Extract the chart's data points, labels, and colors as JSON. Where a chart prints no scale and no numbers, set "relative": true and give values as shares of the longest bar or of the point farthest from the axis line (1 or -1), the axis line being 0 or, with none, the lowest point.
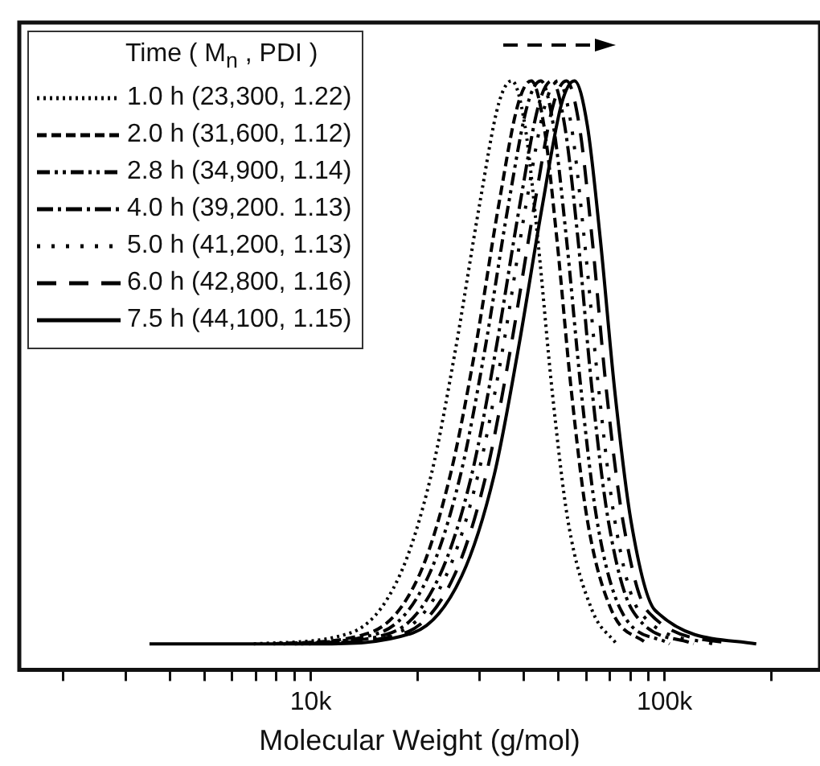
{
  "chart_data": {
    "type": "line",
    "xlabel": "Molecular Weight (g/mol)",
    "legend_title": "Time ( M$_{n}$ ,   PDI )",
    "relative": true,
    "log": "x",
    "grid": false,
    "legend": "top left",
    "marker": "none",
    "tick_labels": "x",
    "xlim": [
      1500,
      275000
    ],
    "xticks": [
      {
        "value": 2000,
        "label": null
      },
      {
        "value": 3000,
        "label": null
      },
      {
        "value": 4000,
        "label": null
      },
      {
        "value": 5000,
        "label": null
      },
      {
        "value": 6000,
        "label": null
      },
      {
        "value": 7000,
        "label": null
      },
      {
        "value": 8000,
        "label": null
      },
      {
        "value": 9000,
        "label": null
      },
      {
        "value": 10000,
        "label": "10k"
      },
      {
        "value": 20000,
        "label": null
      },
      {
        "value": 30000,
        "label": null
      },
      {
        "value": 40000,
        "label": null
      },
      {
        "value": 50000,
        "label": null
      },
      {
        "value": 60000,
        "label": null
      },
      {
        "value": 70000,
        "label": null
      },
      {
        "value": 80000,
        "label": null
      },
      {
        "value": 90000,
        "label": null
      },
      {
        "value": 100000,
        "label": "100k"
      },
      {
        "value": 200000,
        "label": null
      }
    ],
    "series": [
      {
        "name": "1.0 h (23,300, 1.22)",
        "color": "#000000",
        "line_style": "dotted",
        "x": [
          6900,
          13000,
          17800,
          21900,
          25600,
          30000,
          34000,
          37000,
          40300,
          43800,
          48100,
          53300,
          62400,
          73100
        ],
        "values": [
          0.044,
          0.063,
          0.159,
          0.331,
          0.541,
          0.79,
          0.962,
          1,
          0.924,
          0.732,
          0.474,
          0.254,
          0.101,
          0.044
        ]
      },
      {
        "name": "2.0 h (31,600, 1.12)",
        "color": "#000000",
        "line_style": "dashed",
        "x": [
          7850,
          14700,
          20200,
          24800,
          29100,
          34000,
          38600,
          42000,
          45600,
          49600,
          54500,
          60500,
          70800,
          89100
        ],
        "values": [
          0.044,
          0.063,
          0.159,
          0.331,
          0.541,
          0.79,
          0.962,
          1,
          0.924,
          0.732,
          0.474,
          0.254,
          0.101,
          0.044
        ]
      },
      {
        "name": "2.8 h (34,900, 1.14)",
        "color": "#000000",
        "line_style": "dashdotdot",
        "x": [
          8370,
          15700,
          21500,
          26500,
          31000,
          36200,
          41100,
          44700,
          48500,
          52800,
          58100,
          64400,
          75300,
          103300
        ],
        "values": [
          0.044,
          0.063,
          0.159,
          0.331,
          0.541,
          0.79,
          0.962,
          1,
          0.924,
          0.732,
          0.474,
          0.254,
          0.101,
          0.044
        ]
      },
      {
        "name": "4.0 h (39,200. 1.13)",
        "color": "#000000",
        "line_style": "dashdot",
        "x": [
          9010,
          16900,
          23100,
          28500,
          33300,
          39000,
          44200,
          48100,
          52200,
          56900,
          62400,
          69300,
          81100,
          120800
        ],
        "values": [
          0.044,
          0.063,
          0.159,
          0.331,
          0.541,
          0.79,
          0.962,
          1,
          0.924,
          0.732,
          0.474,
          0.254,
          0.101,
          0.044
        ]
      },
      {
        "name": "5.0 h (41,200, 1.13)",
        "color": "#000000",
        "line_style": "loosely_dotted",
        "x": [
          9400,
          17600,
          24100,
          29700,
          34800,
          40600,
          46100,
          50100,
          54500,
          59300,
          65200,
          72300,
          84500,
          136800
        ],
        "values": [
          0.044,
          0.063,
          0.159,
          0.331,
          0.541,
          0.79,
          0.962,
          1,
          0.924,
          0.732,
          0.474,
          0.254,
          0.101,
          0.044
        ]
      },
      {
        "name": "6.0 h (42,800, 1.16)",
        "color": "#000000",
        "line_style": "long_dashed",
        "x": [
          9890,
          18500,
          25400,
          31300,
          36600,
          42900,
          48600,
          52800,
          57400,
          62400,
          68500,
          76200,
          89100,
          156700
        ],
        "values": [
          0.044,
          0.063,
          0.159,
          0.331,
          0.541,
          0.79,
          0.962,
          1,
          0.924,
          0.732,
          0.474,
          0.254,
          0.101,
          0.044
        ]
      },
      {
        "name": "7.5 h (44,100, 1.15)",
        "color": "#000000",
        "line_style": "solid",
        "x": [
          3500,
          10400,
          19500,
          26700,
          33000,
          38500,
          45200,
          51200,
          55600,
          60500,
          65800,
          72300,
          80300,
          94000,
          181600
        ],
        "values": [
          0.044,
          0.044,
          0.063,
          0.159,
          0.331,
          0.541,
          0.79,
          0.962,
          1,
          0.924,
          0.732,
          0.474,
          0.254,
          0.101,
          0.044
        ]
      }
    ]
  }
}
